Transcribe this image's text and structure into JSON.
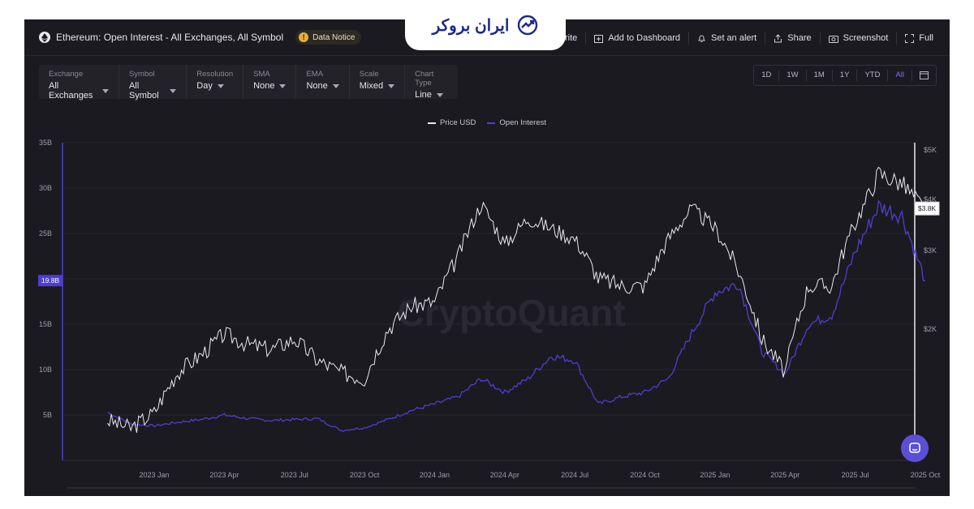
{
  "header": {
    "title": "Ethereum: Open Interest - All Exchanges, All Symbol",
    "notice_label": "Data Notice",
    "actions": {
      "favorite": "orite",
      "dashboard": "Add to Dashboard",
      "alert": "Set an alert",
      "share": "Share",
      "screenshot": "Screenshot",
      "full": "Full"
    }
  },
  "brand": {
    "name": "ایران بروکر"
  },
  "controls": [
    {
      "label": "Exchange",
      "value": "All Exchanges"
    },
    {
      "label": "Symbol",
      "value": "All Symbol"
    },
    {
      "label": "Resolution",
      "value": "Day"
    },
    {
      "label": "SMA",
      "value": "None"
    },
    {
      "label": "EMA",
      "value": "None"
    },
    {
      "label": "Scale",
      "value": "Mixed"
    },
    {
      "label": "Chart Type",
      "value": "Line"
    }
  ],
  "ranges": [
    "1D",
    "1W",
    "1M",
    "1Y",
    "YTD",
    "All"
  ],
  "active_range": "All",
  "watermark": "CryptoQuant",
  "colors": {
    "price": "#e9e9ee",
    "open_interest": "#4d3fd0",
    "accent": "#7c72ff",
    "background": "#1b1a20"
  },
  "chart_data": {
    "type": "line",
    "legend": [
      "Price USD",
      "Open Interest"
    ],
    "legend_position": "top-center",
    "x_ticks": [
      "2023 Jan",
      "2023 Apr",
      "2023 Jul",
      "2023 Oct",
      "2024 Jan",
      "2024 Apr",
      "2024 Jul",
      "2024 Oct",
      "2025 Jan",
      "2025 Apr",
      "2025 Jul",
      "2025 Oct"
    ],
    "left_axis": {
      "label": "",
      "ticks": [
        "35B",
        "30B",
        "25B",
        "20B",
        "15B",
        "10B",
        "5B"
      ],
      "range": [
        0,
        35
      ],
      "current_label": "19.8B",
      "current_value": 19.8
    },
    "right_axis": {
      "label": "",
      "ticks": [
        "$5K",
        "$4K",
        "$3K",
        "$2K"
      ],
      "current_label": "$3.8K",
      "current_value": 3.8
    },
    "grid": true,
    "series": [
      {
        "name": "Price USD",
        "axis": "right",
        "x": [
          "2022-11",
          "2022-12",
          "2023-01",
          "2023-02",
          "2023-03",
          "2023-04",
          "2023-05",
          "2023-06",
          "2023-07",
          "2023-08",
          "2023-09",
          "2023-10",
          "2023-11",
          "2023-12",
          "2024-01",
          "2024-02",
          "2024-03",
          "2024-04",
          "2024-05",
          "2024-06",
          "2024-07",
          "2024-08",
          "2024-09",
          "2024-10",
          "2024-11",
          "2024-12",
          "2025-01",
          "2025-02",
          "2025-03",
          "2025-04",
          "2025-05",
          "2025-06",
          "2025-07",
          "2025-08",
          "2025-09",
          "2025-10"
        ],
        "values": [
          1.25,
          1.2,
          1.3,
          1.6,
          1.75,
          1.95,
          1.85,
          1.8,
          1.9,
          1.7,
          1.6,
          1.55,
          2.0,
          2.25,
          2.3,
          2.9,
          3.9,
          3.1,
          3.6,
          3.4,
          3.2,
          2.6,
          2.5,
          2.5,
          3.2,
          3.8,
          3.4,
          2.7,
          1.9,
          1.6,
          2.5,
          2.5,
          3.5,
          4.5,
          4.3,
          3.8
        ]
      },
      {
        "name": "Open Interest",
        "axis": "left",
        "x": [
          "2022-11",
          "2022-12",
          "2023-01",
          "2023-02",
          "2023-03",
          "2023-04",
          "2023-05",
          "2023-06",
          "2023-07",
          "2023-08",
          "2023-09",
          "2023-10",
          "2023-11",
          "2023-12",
          "2024-01",
          "2024-02",
          "2024-03",
          "2024-04",
          "2024-05",
          "2024-06",
          "2024-07",
          "2024-08",
          "2024-09",
          "2024-10",
          "2024-11",
          "2024-12",
          "2025-01",
          "2025-02",
          "2025-03",
          "2025-04",
          "2025-05",
          "2025-06",
          "2025-07",
          "2025-08",
          "2025-09",
          "2025-10"
        ],
        "values": [
          5.3,
          4.0,
          3.8,
          4.2,
          4.5,
          5.0,
          4.6,
          4.4,
          4.5,
          4.6,
          3.3,
          3.6,
          4.5,
          5.5,
          6.2,
          7.0,
          9.0,
          7.5,
          9.0,
          11.5,
          11.0,
          6.2,
          7.0,
          7.5,
          9.0,
          14.0,
          18.5,
          19.5,
          12.0,
          9.5,
          15.0,
          16.0,
          23.0,
          28.0,
          27.0,
          19.8
        ]
      }
    ]
  }
}
